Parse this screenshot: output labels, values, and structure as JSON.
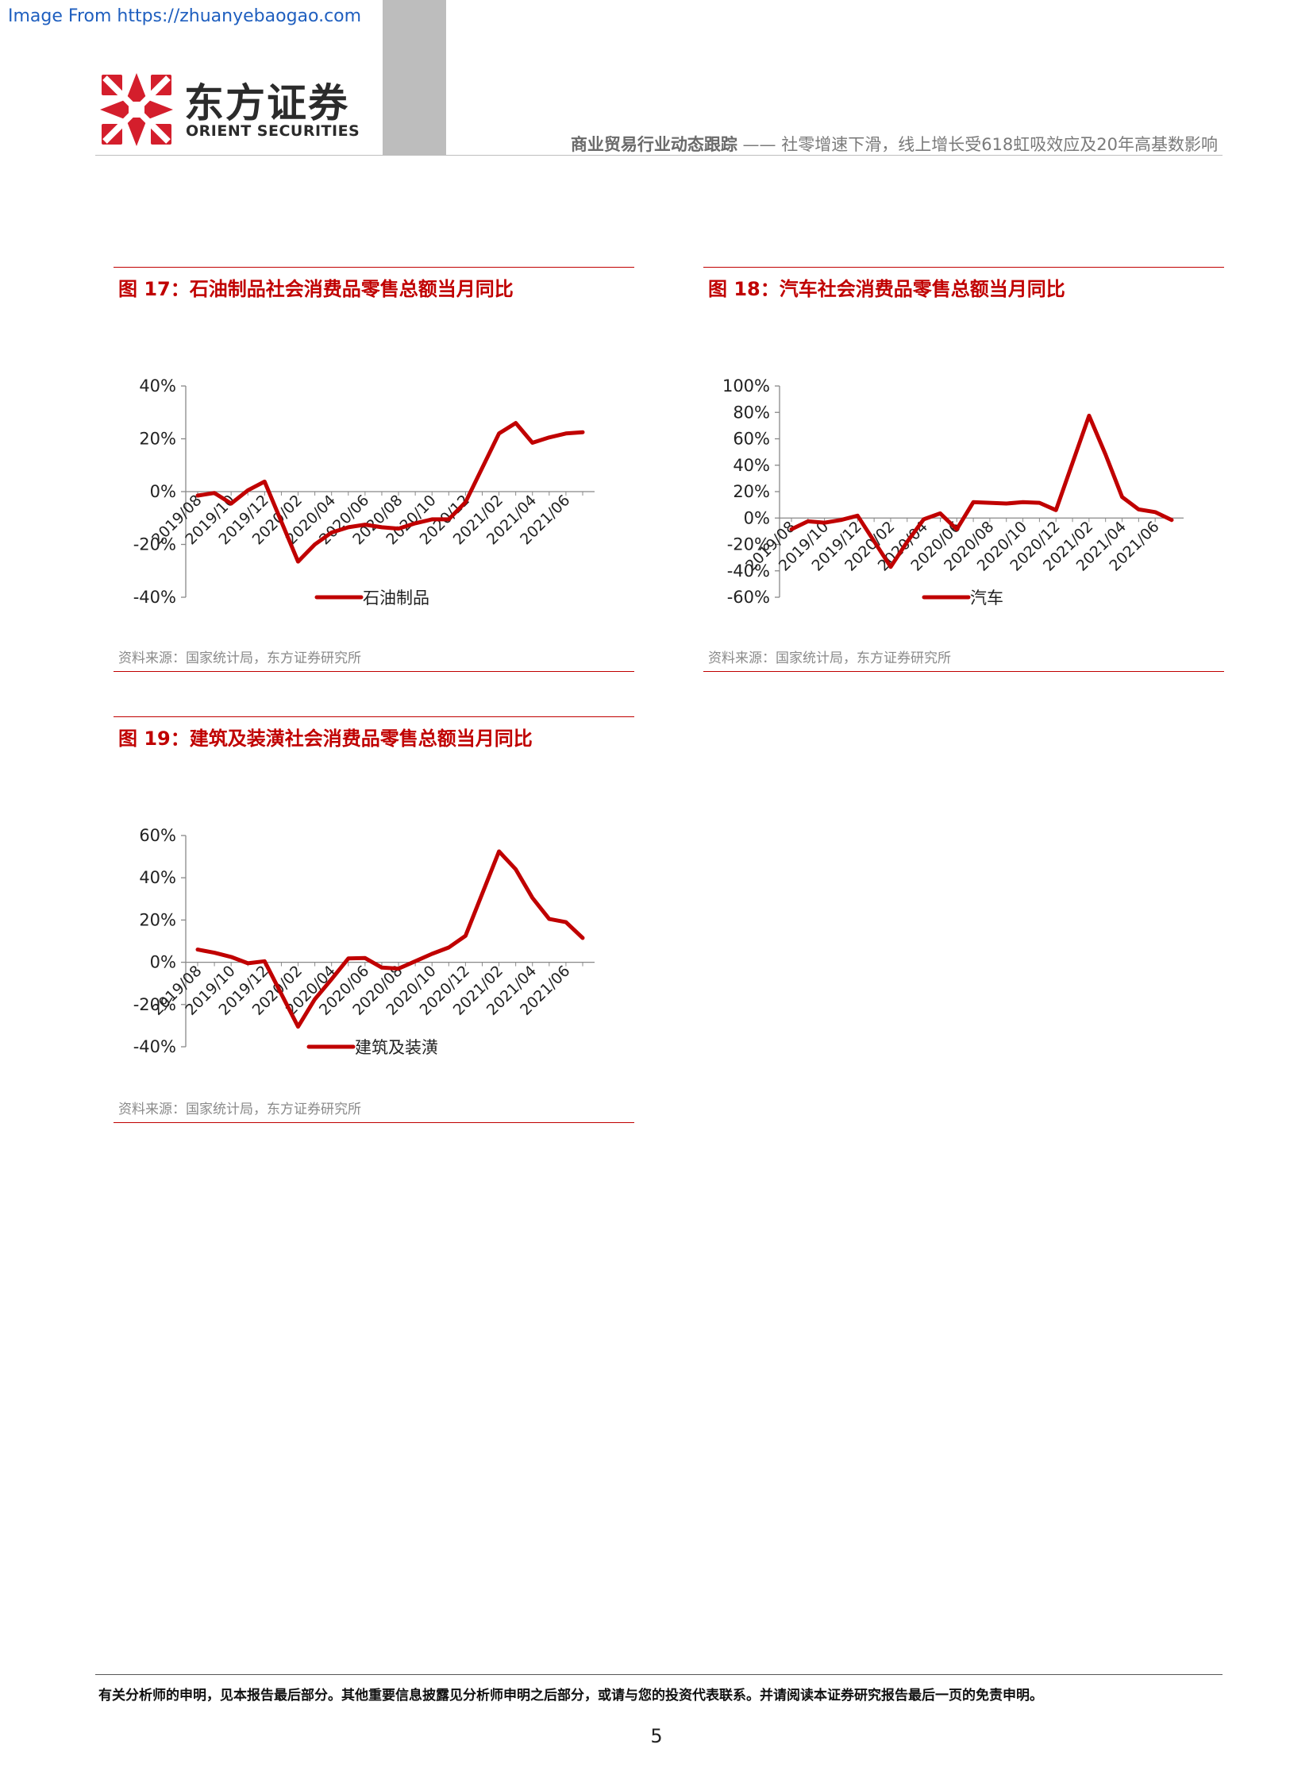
{
  "source_link": "Image From https://zhuanyebaogao.com",
  "logo": {
    "cn": "东方证券",
    "en": "ORIENT SECURITIES",
    "color": "#d41e2c"
  },
  "header": {
    "title_bold": "商业贸易行业动态跟踪",
    "title_rest": "—— 社零增速下滑，线上增长受618虹吸效应及20年高基数影响"
  },
  "figures": [
    {
      "title": "图 17：石油制品社会消费品零售总额当月同比",
      "source": "资料来源：国家统计局，东方证券研究所",
      "chart_data": {
        "type": "line",
        "x": [
          "2019/08",
          "2019/09",
          "2019/10",
          "2019/11",
          "2019/12",
          "2020/01",
          "2020/02",
          "2020/03",
          "2020/04",
          "2020/05",
          "2020/06",
          "2020/07",
          "2020/08",
          "2020/09",
          "2020/10",
          "2020/11",
          "2020/12",
          "2021/01",
          "2021/02",
          "2021/03",
          "2021/04",
          "2021/05",
          "2021/06",
          "2021/07"
        ],
        "tick_labels": [
          "2019/08",
          "2019/10",
          "2019/12",
          "2020/02",
          "2020/04",
          "2020/06",
          "2020/08",
          "2020/10",
          "2020/12",
          "2021/02",
          "2021/04",
          "2021/06"
        ],
        "y_ticks": [
          "40%",
          "20%",
          "0%",
          "-20%",
          "-40%"
        ],
        "ylim": [
          -40,
          40
        ],
        "series": [
          {
            "name": "石油制品",
            "color": "#c00000",
            "values": [
              -1.5,
              -0.5,
              -4.5,
              0.5,
              3.8,
              null,
              -26.5,
              -20,
              -15.5,
              -13.5,
              -12.5,
              -13.5,
              -14,
              -12,
              -10.5,
              -10.5,
              -4,
              null,
              22,
              26,
              18.5,
              20.5,
              22,
              22.5
            ]
          }
        ]
      }
    },
    {
      "title": "图 18：汽车社会消费品零售总额当月同比",
      "source": "资料来源：国家统计局，东方证券研究所",
      "chart_data": {
        "type": "line",
        "x": [
          "2019/08",
          "2019/09",
          "2019/10",
          "2019/11",
          "2019/12",
          "2020/01",
          "2020/02",
          "2020/03",
          "2020/04",
          "2020/05",
          "2020/06",
          "2020/07",
          "2020/08",
          "2020/09",
          "2020/10",
          "2020/11",
          "2020/12",
          "2021/01",
          "2021/02",
          "2021/03",
          "2021/04",
          "2021/05",
          "2021/06",
          "2021/07"
        ],
        "tick_labels": [
          "2019/08",
          "2019/10",
          "2019/12",
          "2020/02",
          "2020/04",
          "2020/06",
          "2020/08",
          "2020/10",
          "2020/12",
          "2021/02",
          "2021/04",
          "2021/06"
        ],
        "y_ticks": [
          "100%",
          "80%",
          "60%",
          "40%",
          "20%",
          "0%",
          "-20%",
          "-40%",
          "-60%"
        ],
        "ylim": [
          -60,
          100
        ],
        "series": [
          {
            "name": "汽车",
            "color": "#c00000",
            "values": [
              -8.5,
              -2.5,
              -3.5,
              -1.5,
              1.8,
              null,
              -37,
              -18,
              -1,
              3.5,
              -8.5,
              12,
              11.5,
              11,
              12,
              11.5,
              6,
              null,
              77.5,
              48,
              16,
              6.5,
              4.5,
              -1.5
            ]
          }
        ]
      }
    },
    {
      "title": "图 19：建筑及装潢社会消费品零售总额当月同比",
      "source": "资料来源：国家统计局，东方证券研究所",
      "chart_data": {
        "type": "line",
        "x": [
          "2019/08",
          "2019/09",
          "2019/10",
          "2019/11",
          "2019/12",
          "2020/01",
          "2020/02",
          "2020/03",
          "2020/04",
          "2020/05",
          "2020/06",
          "2020/07",
          "2020/08",
          "2020/09",
          "2020/10",
          "2020/11",
          "2020/12",
          "2021/01",
          "2021/02",
          "2021/03",
          "2021/04",
          "2021/05",
          "2021/06",
          "2021/07"
        ],
        "tick_labels": [
          "2019/08",
          "2019/10",
          "2019/12",
          "2020/02",
          "2020/04",
          "2020/06",
          "2020/08",
          "2020/10",
          "2020/12",
          "2021/02",
          "2021/04",
          "2021/06"
        ],
        "y_ticks": [
          "60%",
          "40%",
          "20%",
          "0%",
          "-20%",
          "-40%"
        ],
        "ylim": [
          -40,
          60
        ],
        "series": [
          {
            "name": "建筑及装潢",
            "color": "#c00000",
            "values": [
              6,
              4.5,
              2.5,
              -0.5,
              0.5,
              null,
              -30.5,
              -17.5,
              -8,
              1.8,
              2,
              -2.5,
              -3,
              0.5,
              4,
              7,
              12.5,
              null,
              52.5,
              44,
              30.5,
              20.5,
              19,
              11.5
            ]
          }
        ]
      }
    }
  ],
  "footer": {
    "disclaimer": "有关分析师的申明，见本报告最后部分。其他重要信息披露见分析师申明之后部分，或请与您的投资代表联系。并请阅读本证券研究报告最后一页的免责申明。",
    "page_number": "5"
  }
}
